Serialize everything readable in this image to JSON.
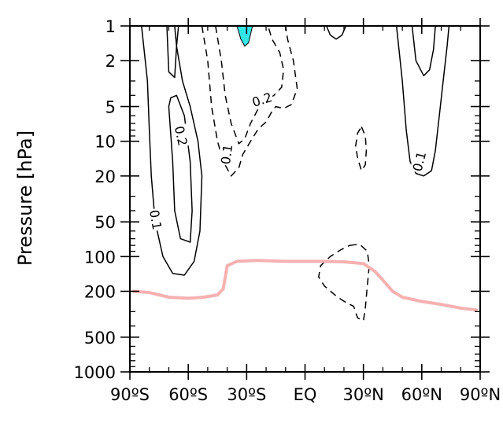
{
  "chart_data": {
    "type": "contour",
    "ylabel": "Pressure [hPa]",
    "x_axis": {
      "range": [
        -90,
        90
      ],
      "ticks": [
        -90,
        -60,
        -30,
        0,
        30,
        60,
        90
      ],
      "tick_labels": [
        "90ºS",
        "60ºS",
        "30ºS",
        "EQ",
        "30ºN",
        "60ºN",
        "90ºN"
      ]
    },
    "y_axis": {
      "scale": "log",
      "reversed": true,
      "range": [
        1000,
        1
      ],
      "ticks": [
        1,
        2,
        5,
        10,
        20,
        50,
        100,
        200,
        500,
        1000
      ],
      "tick_labels": [
        "1",
        "2",
        "5",
        "10",
        "20",
        "50",
        "100",
        "200",
        "500",
        "1000"
      ]
    },
    "grid": false,
    "shading_color": "#33e6e6",
    "tropopause_color": "#f6b1b1",
    "shaded_regions": [
      {
        "name": "cyan-shade-30s",
        "points": [
          [
            -35,
            1
          ],
          [
            -33,
            1.3
          ],
          [
            -31,
            1.5
          ],
          [
            -29,
            1.4
          ],
          [
            -27,
            1
          ]
        ]
      }
    ],
    "contours": [
      {
        "level": 0.1,
        "style": "solid",
        "points": [
          [
            -84,
            1
          ],
          [
            -81,
            3
          ],
          [
            -80,
            8
          ],
          [
            -79,
            20
          ],
          [
            -77,
            50
          ],
          [
            -73,
            100
          ],
          [
            -68,
            140
          ],
          [
            -62,
            145
          ],
          [
            -57,
            110
          ],
          [
            -54,
            60
          ],
          [
            -53,
            20
          ],
          [
            -55,
            10
          ],
          [
            -59,
            5
          ],
          [
            -63,
            3
          ],
          [
            -66,
            1.5
          ],
          [
            -67,
            1
          ]
        ]
      },
      {
        "level": 0.2,
        "style": "solid",
        "points": [
          [
            -71,
            1
          ],
          [
            -70,
            2.5
          ],
          [
            -67,
            2.8
          ],
          [
            -66,
            1.5
          ],
          [
            -65,
            1
          ]
        ]
      },
      {
        "level": 0.2,
        "style": "solid",
        "points": [
          [
            -70,
            5
          ],
          [
            -68,
            15
          ],
          [
            -67,
            40
          ],
          [
            -64,
            70
          ],
          [
            -59,
            75
          ],
          [
            -58,
            40
          ],
          [
            -59,
            15
          ],
          [
            -62,
            6
          ],
          [
            -66,
            4
          ],
          [
            -69,
            4.2
          ],
          [
            -70,
            5
          ]
        ]
      },
      {
        "level": -0.1,
        "style": "dashed",
        "points": [
          [
            -53,
            1
          ],
          [
            -50,
            2
          ],
          [
            -48,
            5
          ],
          [
            -45,
            10
          ],
          [
            -42,
            15
          ],
          [
            -38,
            20
          ],
          [
            -34,
            17
          ],
          [
            -32,
            13
          ],
          [
            -28,
            10
          ],
          [
            -24,
            7.8
          ],
          [
            -20,
            6.8
          ],
          [
            -17,
            5.5
          ],
          [
            -15,
            5
          ],
          [
            -11,
            5.2
          ],
          [
            -7,
            4.8
          ],
          [
            -4,
            3.5
          ],
          [
            -6,
            2
          ],
          [
            -9,
            1.3
          ],
          [
            -10,
            1
          ]
        ]
      },
      {
        "level": -0.2,
        "style": "dashed",
        "points": [
          [
            -46,
            1
          ],
          [
            -43,
            2
          ],
          [
            -41,
            4
          ],
          [
            -38,
            7
          ],
          [
            -34,
            10.5
          ],
          [
            -31,
            9.5
          ],
          [
            -28,
            7
          ],
          [
            -24,
            5.2
          ],
          [
            -20,
            4.5
          ],
          [
            -16,
            4
          ],
          [
            -12,
            3.4
          ],
          [
            -11,
            2.4
          ],
          [
            -13,
            1.7
          ],
          [
            -17,
            1.3
          ],
          [
            -19,
            1
          ]
        ]
      },
      {
        "level": -0.1,
        "style": "dashed",
        "points": [
          [
            29,
            7.5
          ],
          [
            31,
            9
          ],
          [
            31.5,
            12
          ],
          [
            31,
            16
          ],
          [
            29,
            18
          ],
          [
            27,
            14
          ],
          [
            26,
            11
          ],
          [
            27,
            8.5
          ],
          [
            29,
            7.5
          ]
        ]
      },
      {
        "level": -0.1,
        "style": "dashed",
        "points": [
          [
            23,
            80
          ],
          [
            28,
            78
          ],
          [
            32,
            90
          ],
          [
            33,
            120
          ],
          [
            32,
            180
          ],
          [
            31,
            280
          ],
          [
            30,
            360
          ],
          [
            27,
            340
          ],
          [
            25,
            270
          ],
          [
            21,
            250
          ],
          [
            16,
            220
          ],
          [
            10,
            180
          ],
          [
            7,
            150
          ],
          [
            8,
            120
          ],
          [
            13,
            100
          ],
          [
            18,
            88
          ],
          [
            23,
            80
          ]
        ]
      },
      {
        "level": 0.1,
        "style": "solid",
        "points": [
          [
            21,
            1
          ],
          [
            19,
            1.2
          ],
          [
            16,
            1.3
          ],
          [
            13,
            1.2
          ],
          [
            11,
            1
          ]
        ]
      },
      {
        "level": 0.1,
        "style": "solid",
        "points": [
          [
            47,
            1
          ],
          [
            50,
            3
          ],
          [
            52,
            8
          ],
          [
            54,
            15
          ],
          [
            57,
            19
          ],
          [
            61,
            20
          ],
          [
            65,
            18
          ],
          [
            67,
            12
          ],
          [
            69,
            6
          ],
          [
            71,
            3
          ],
          [
            73,
            1.5
          ],
          [
            74,
            1
          ]
        ]
      },
      {
        "level": 0.2,
        "style": "solid",
        "points": [
          [
            55,
            1
          ],
          [
            57,
            2
          ],
          [
            61,
            2.7
          ],
          [
            64,
            2.4
          ],
          [
            66,
            1.6
          ],
          [
            67,
            1
          ]
        ]
      }
    ],
    "contour_labels": [
      {
        "text": "0.2",
        "x": -64,
        "y": 9,
        "rotate": 78
      },
      {
        "text": "0.1",
        "x": -77,
        "y": 48,
        "rotate": 80
      },
      {
        "text": "0.1",
        "x": -40,
        "y": 13,
        "rotate": -82
      },
      {
        "text": "0.2",
        "x": -22,
        "y": 4.4,
        "rotate": -18
      },
      {
        "text": "0.1",
        "x": 59,
        "y": 15,
        "rotate": -76
      }
    ],
    "tropopause": [
      [
        -88,
        200
      ],
      [
        -80,
        205
      ],
      [
        -70,
        225
      ],
      [
        -60,
        230
      ],
      [
        -52,
        225
      ],
      [
        -45,
        215
      ],
      [
        -42,
        190
      ],
      [
        -40,
        120
      ],
      [
        -35,
        110
      ],
      [
        -25,
        108
      ],
      [
        -10,
        110
      ],
      [
        0,
        110
      ],
      [
        10,
        110
      ],
      [
        20,
        111
      ],
      [
        30,
        115
      ],
      [
        36,
        135
      ],
      [
        40,
        160
      ],
      [
        45,
        200
      ],
      [
        50,
        225
      ],
      [
        60,
        245
      ],
      [
        70,
        260
      ],
      [
        80,
        280
      ],
      [
        88,
        290
      ]
    ]
  }
}
